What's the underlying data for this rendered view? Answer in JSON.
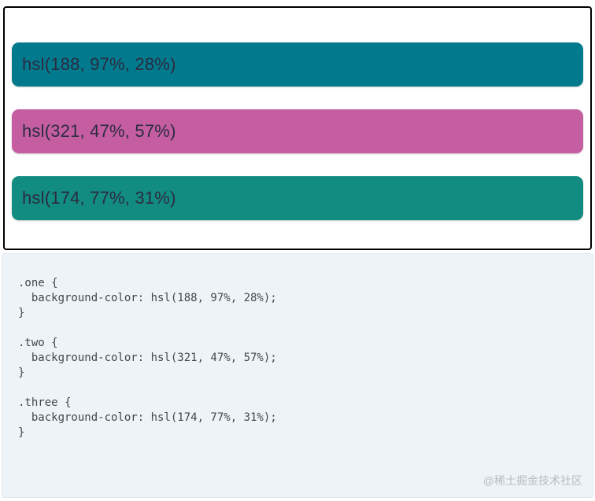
{
  "preview": {
    "swatches": [
      {
        "label": "hsl(188, 97%, 28%)",
        "color": "hsl(188, 97%, 28%)"
      },
      {
        "label": "hsl(321, 47%, 57%)",
        "color": "hsl(321, 47%, 57%)"
      },
      {
        "label": "hsl(174, 77%, 31%)",
        "color": "hsl(174, 77%, 31%)"
      }
    ],
    "text_color": "#2b2b40"
  },
  "code": {
    "text": ".one {\n  background-color: hsl(188, 97%, 28%);\n}\n\n.two {\n  background-color: hsl(321, 47%, 57%);\n}\n\n.three {\n  background-color: hsl(174, 77%, 31%);\n}"
  },
  "watermark": {
    "text": "@稀土掘金技术社区"
  }
}
